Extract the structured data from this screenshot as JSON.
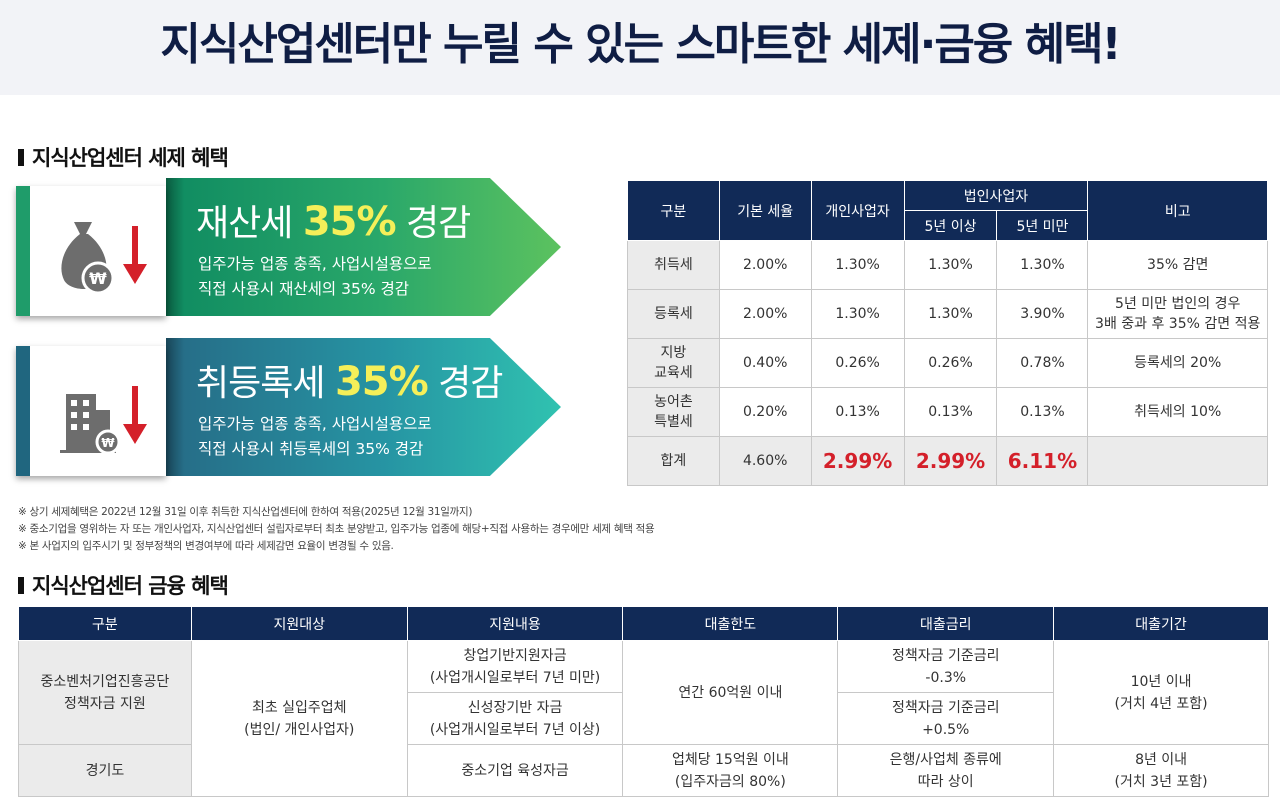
{
  "title": "지식산업센터만 누릴 수 있는 스마트한 세제·금융 혜택!",
  "tax_section": {
    "heading": "지식산업센터 세제 혜택",
    "banners": [
      {
        "icon": "money-bag-won-down-icon",
        "title_prefix": "재산세",
        "title_pct": "35%",
        "title_suffix": "경감",
        "desc_line1": "입주가능 업종 충족, 사업시설용으로",
        "desc_line2": "직접 사용시 재산세의 35% 경감",
        "accent": "#1f9c6a"
      },
      {
        "icon": "building-won-down-icon",
        "title_prefix": "취등록세",
        "title_pct": "35%",
        "title_suffix": "경감",
        "desc_line1": "입주가능 업종 충족, 사업시설용으로",
        "desc_line2": "직접 사용시 취등록세의 35% 경감",
        "accent": "#20667f"
      }
    ],
    "table": {
      "headers": {
        "category": "구분",
        "base_rate": "기본 세율",
        "individual": "개인사업자",
        "corporate": "법인사업자",
        "corp_5plus": "5년 이상",
        "corp_5minus": "5년 미만",
        "remarks": "비고"
      },
      "rows": [
        {
          "label": "취득세",
          "base": "2.00%",
          "indiv": "1.30%",
          "c5p": "1.30%",
          "c5m": "1.30%",
          "note1": "35% 감면",
          "note2": ""
        },
        {
          "label": "등록세",
          "base": "2.00%",
          "indiv": "1.30%",
          "c5p": "1.30%",
          "c5m": "3.90%",
          "note1": "5년 미만 법인의 경우",
          "note2": "3배 중과 후 35% 감면 적용"
        },
        {
          "label": "지방",
          "label2": "교육세",
          "base": "0.40%",
          "indiv": "0.26%",
          "c5p": "0.26%",
          "c5m": "0.78%",
          "note1": "등록세의 20%",
          "note2": ""
        },
        {
          "label": "농어촌",
          "label2": "특별세",
          "base": "0.20%",
          "indiv": "0.13%",
          "c5p": "0.13%",
          "c5m": "0.13%",
          "note1": "취득세의 10%",
          "note2": ""
        }
      ],
      "total": {
        "label": "합계",
        "base": "4.60%",
        "indiv": "2.99%",
        "c5p": "2.99%",
        "c5m": "6.11%",
        "note": ""
      }
    },
    "notes": [
      "※ 상기 세제혜택은 2022년 12월 31일 이후 취득한 지식산업센터에 한하여 적용(2025년 12월 31일까지)",
      "※ 중소기업을 영위하는 자 또는 개인사업자, 지식산업센터 설립자로부터 최초 분양받고, 입주가능 업종에 해당+직접 사용하는 경우에만 세제 혜택 적용",
      "※ 본 사업지의 입주시기 및 정부정책의 변경여부에 따라 세제감면 요율이 변경될 수 있음."
    ]
  },
  "finance_section": {
    "heading": "지식산업센터 금융 혜택",
    "headers": [
      "구분",
      "지원대상",
      "지원내용",
      "대출한도",
      "대출금리",
      "대출기간"
    ],
    "org1_line1": "중소벤처기업진흥공단",
    "org1_line2": "정책자금 지원",
    "org2": "경기도",
    "target_line1": "최초 실입주업체",
    "target_line2": "(법인/ 개인사업자)",
    "content1_line1": "창업기반지원자금",
    "content1_line2": "(사업개시일로부터 7년 미만)",
    "content2_line1": "신성장기반 자금",
    "content2_line2": "(사업개시일로부터 7년 이상)",
    "content3": "중소기업 육성자금",
    "limit1": "연간 60억원 이내",
    "limit2_line1": "업체당 15억원 이내",
    "limit2_line2": "(입주자금의 80%)",
    "rate1_line1": "정책자금 기준금리",
    "rate1_line2": "-0.3%",
    "rate2_line1": "정책자금 기준금리",
    "rate2_line2": "+0.5%",
    "rate3_line1": "은행/사업체 종류에",
    "rate3_line2": "따라 상이",
    "period1_line1": "10년 이내",
    "period1_line2": "(거치 4년 포함)",
    "period2_line1": "8년 이내",
    "period2_line2": "(거치 3년 포함)"
  },
  "colors": {
    "navy": "#112a57",
    "title": "#0f1d44",
    "highlight_red": "#d4202a",
    "banner_yellow": "#f5ef59"
  }
}
